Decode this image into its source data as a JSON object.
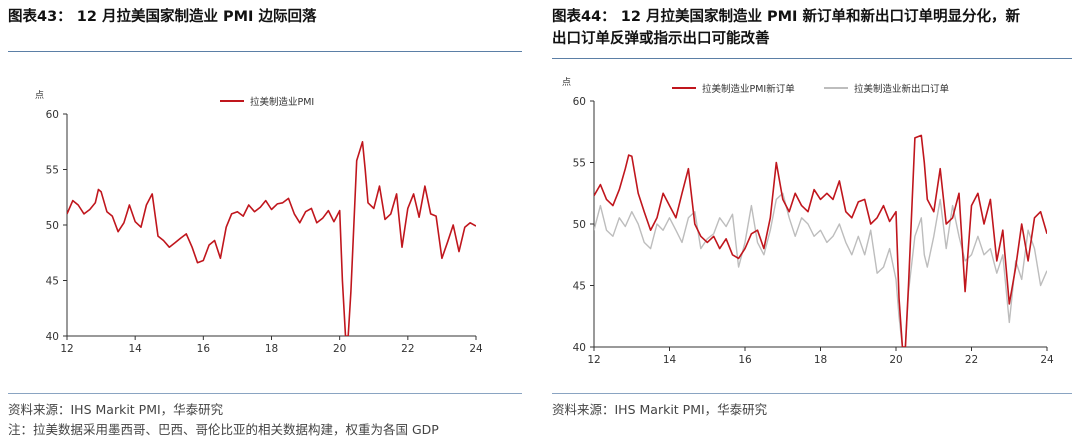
{
  "left": {
    "title": "图表43：  12 月拉美国家制造业 PMI 边际回落",
    "source": "资料来源：IHS Markit PMI，华泰研究",
    "note": "注：拉美数据采用墨西哥、巴西、哥伦比亚的相关数据构建，权重为各国 GDP"
  },
  "right": {
    "title_line1": "图表44：  12 月拉美国家制造业 PMI 新订单和新出口订单明显分化，新",
    "title_line2": "出口订单反弹或指示出口可能改善",
    "source": "资料来源：IHS Markit PMI，华泰研究"
  },
  "colors": {
    "red": "#c0161d",
    "gray": "#bdbdbd",
    "axis": "#333333",
    "rule": "#5b7fa6"
  },
  "chart_data": [
    {
      "type": "line",
      "unit_label": "点",
      "x_ticks": [
        "12",
        "14",
        "16",
        "18",
        "20",
        "22",
        "24"
      ],
      "xlim": [
        2012,
        2024
      ],
      "ylim": [
        40,
        60
      ],
      "y_ticks": [
        40,
        45,
        50,
        55,
        60
      ],
      "grid": false,
      "legend_position": "top-center",
      "series": [
        {
          "name": "拉美制造业PMI",
          "color": "#c0161d",
          "x": [
            2012.0,
            2012.17,
            2012.33,
            2012.5,
            2012.67,
            2012.83,
            2012.92,
            2013.0,
            2013.17,
            2013.33,
            2013.5,
            2013.67,
            2013.83,
            2014.0,
            2014.17,
            2014.33,
            2014.5,
            2014.67,
            2014.83,
            2015.0,
            2015.17,
            2015.33,
            2015.5,
            2015.67,
            2015.83,
            2016.0,
            2016.17,
            2016.33,
            2016.5,
            2016.67,
            2016.83,
            2017.0,
            2017.17,
            2017.33,
            2017.5,
            2017.67,
            2017.83,
            2018.0,
            2018.17,
            2018.33,
            2018.5,
            2018.67,
            2018.83,
            2019.0,
            2019.17,
            2019.33,
            2019.5,
            2019.67,
            2019.83,
            2020.0,
            2020.08,
            2020.17,
            2020.25,
            2020.33,
            2020.5,
            2020.67,
            2020.75,
            2020.83,
            2021.0,
            2021.17,
            2021.33,
            2021.5,
            2021.67,
            2021.83,
            2022.0,
            2022.17,
            2022.33,
            2022.5,
            2022.67,
            2022.83,
            2023.0,
            2023.17,
            2023.33,
            2023.5,
            2023.67,
            2023.83,
            2024.0
          ],
          "y": [
            51.0,
            52.2,
            51.8,
            51.0,
            51.4,
            52.0,
            53.2,
            53.0,
            51.2,
            50.8,
            49.4,
            50.2,
            51.8,
            50.3,
            49.8,
            51.8,
            52.8,
            49.0,
            48.6,
            48.0,
            48.4,
            48.8,
            49.2,
            48.0,
            46.6,
            46.8,
            48.2,
            48.6,
            47.0,
            49.8,
            51.0,
            51.2,
            50.8,
            51.8,
            51.2,
            51.6,
            52.2,
            51.4,
            51.9,
            52.0,
            52.4,
            51.0,
            50.2,
            51.2,
            51.5,
            50.2,
            50.6,
            51.3,
            50.3,
            51.3,
            45.0,
            39.5,
            39.5,
            44.0,
            55.8,
            57.5,
            55.0,
            52.0,
            51.5,
            53.5,
            50.5,
            51.0,
            52.8,
            48.0,
            51.5,
            52.8,
            50.7,
            53.5,
            51.0,
            50.8,
            47.0,
            48.5,
            50.0,
            47.6,
            49.8,
            50.2,
            49.9
          ]
        }
      ]
    },
    {
      "type": "line",
      "unit_label": "点",
      "x_ticks": [
        "12",
        "14",
        "16",
        "18",
        "20",
        "22",
        "24"
      ],
      "xlim": [
        2012,
        2024
      ],
      "ylim": [
        40,
        60
      ],
      "y_ticks": [
        40,
        45,
        50,
        55,
        60
      ],
      "grid": false,
      "legend_position": "top-center",
      "series": [
        {
          "name": "拉美制造业PMI新订单",
          "color": "#c0161d",
          "x": [
            2012.0,
            2012.17,
            2012.33,
            2012.5,
            2012.67,
            2012.83,
            2012.92,
            2013.0,
            2013.17,
            2013.33,
            2013.5,
            2013.67,
            2013.83,
            2014.0,
            2014.17,
            2014.33,
            2014.5,
            2014.67,
            2014.83,
            2015.0,
            2015.17,
            2015.33,
            2015.5,
            2015.67,
            2015.83,
            2016.0,
            2016.17,
            2016.33,
            2016.5,
            2016.67,
            2016.83,
            2017.0,
            2017.17,
            2017.33,
            2017.5,
            2017.67,
            2017.83,
            2018.0,
            2018.17,
            2018.33,
            2018.5,
            2018.67,
            2018.83,
            2019.0,
            2019.17,
            2019.33,
            2019.5,
            2019.67,
            2019.83,
            2020.0,
            2020.08,
            2020.17,
            2020.25,
            2020.33,
            2020.5,
            2020.67,
            2020.75,
            2020.83,
            2021.0,
            2021.17,
            2021.33,
            2021.5,
            2021.67,
            2021.83,
            2022.0,
            2022.17,
            2022.33,
            2022.5,
            2022.67,
            2022.83,
            2023.0,
            2023.17,
            2023.33,
            2023.5,
            2023.67,
            2023.83,
            2024.0
          ],
          "y": [
            52.3,
            53.2,
            52.0,
            51.5,
            52.8,
            54.5,
            55.6,
            55.5,
            52.5,
            51.0,
            49.5,
            50.5,
            52.5,
            51.5,
            50.5,
            52.5,
            54.5,
            50.0,
            49.0,
            48.5,
            49.0,
            48.0,
            48.8,
            47.5,
            47.2,
            48.0,
            49.2,
            49.5,
            48.0,
            50.5,
            55.0,
            52.0,
            51.0,
            52.5,
            51.5,
            51.0,
            52.8,
            52.0,
            52.5,
            52.0,
            53.5,
            51.0,
            50.5,
            51.8,
            52.0,
            50.0,
            50.5,
            51.5,
            50.2,
            51.0,
            44.0,
            40.0,
            40.0,
            45.0,
            57.0,
            57.2,
            55.0,
            52.0,
            51.0,
            54.5,
            50.0,
            50.5,
            52.5,
            44.5,
            51.5,
            52.5,
            50.0,
            52.0,
            47.0,
            49.5,
            43.5,
            46.5,
            50.0,
            47.0,
            50.5,
            51.0,
            49.2
          ]
        },
        {
          "name": "拉美制造业新出口订单",
          "color": "#bdbdbd",
          "x": [
            2012.0,
            2012.17,
            2012.33,
            2012.5,
            2012.67,
            2012.83,
            2013.0,
            2013.17,
            2013.33,
            2013.5,
            2013.67,
            2013.83,
            2014.0,
            2014.17,
            2014.33,
            2014.5,
            2014.67,
            2014.83,
            2015.0,
            2015.17,
            2015.33,
            2015.5,
            2015.67,
            2015.83,
            2016.0,
            2016.17,
            2016.33,
            2016.5,
            2016.67,
            2016.83,
            2017.0,
            2017.17,
            2017.33,
            2017.5,
            2017.67,
            2017.83,
            2018.0,
            2018.17,
            2018.33,
            2018.5,
            2018.67,
            2018.83,
            2019.0,
            2019.17,
            2019.33,
            2019.5,
            2019.67,
            2019.83,
            2020.0,
            2020.08,
            2020.17,
            2020.25,
            2020.33,
            2020.5,
            2020.67,
            2020.75,
            2020.83,
            2021.0,
            2021.17,
            2021.33,
            2021.5,
            2021.67,
            2021.83,
            2022.0,
            2022.17,
            2022.33,
            2022.5,
            2022.67,
            2022.83,
            2023.0,
            2023.17,
            2023.33,
            2023.5,
            2023.67,
            2023.83,
            2024.0
          ],
          "y": [
            49.5,
            51.5,
            49.5,
            49.0,
            50.5,
            49.8,
            51.0,
            50.0,
            48.5,
            48.0,
            50.0,
            49.5,
            50.5,
            49.5,
            48.5,
            50.5,
            51.0,
            48.0,
            48.8,
            49.2,
            50.5,
            49.8,
            50.8,
            46.5,
            48.5,
            51.5,
            48.5,
            47.5,
            49.5,
            52.0,
            52.5,
            50.5,
            49.0,
            50.5,
            50.0,
            49.0,
            49.5,
            48.5,
            49.0,
            50.0,
            48.5,
            47.5,
            49.0,
            47.5,
            49.5,
            46.0,
            46.5,
            48.0,
            45.5,
            42.5,
            40.0,
            40.0,
            44.5,
            49.0,
            50.5,
            47.5,
            46.5,
            49.0,
            52.0,
            48.0,
            51.5,
            49.0,
            47.0,
            47.5,
            49.0,
            47.5,
            48.0,
            46.0,
            47.5,
            42.0,
            47.0,
            45.5,
            49.5,
            48.0,
            45.0,
            46.2
          ]
        }
      ]
    }
  ]
}
